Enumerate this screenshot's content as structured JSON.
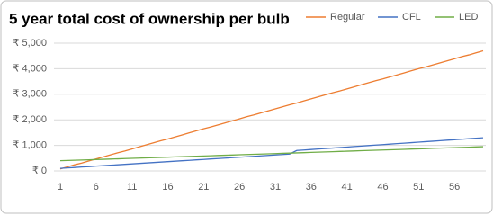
{
  "chart_data": {
    "type": "line",
    "title": "5 year total cost of ownership per bulb",
    "x": [
      1,
      2,
      3,
      4,
      5,
      6,
      7,
      8,
      9,
      10,
      11,
      12,
      13,
      14,
      15,
      16,
      17,
      18,
      19,
      20,
      21,
      22,
      23,
      24,
      25,
      26,
      27,
      28,
      29,
      30,
      31,
      32,
      33,
      34,
      35,
      36,
      37,
      38,
      39,
      40,
      41,
      42,
      43,
      44,
      45,
      46,
      47,
      48,
      49,
      50,
      51,
      52,
      53,
      54,
      55,
      56,
      57,
      58,
      59,
      60
    ],
    "xlim": [
      1,
      60
    ],
    "xticks": [
      1,
      6,
      11,
      16,
      21,
      26,
      31,
      36,
      41,
      46,
      51,
      56
    ],
    "ylim": [
      0,
      5000
    ],
    "yticks": [
      {
        "value": 0,
        "label": "₹ 0"
      },
      {
        "value": 1000,
        "label": "₹ 1,000"
      },
      {
        "value": 2000,
        "label": "₹ 2,000"
      },
      {
        "value": 3000,
        "label": "₹ 3,000"
      },
      {
        "value": 4000,
        "label": "₹ 4,000"
      },
      {
        "value": 5000,
        "label": "₹ 5,000"
      }
    ],
    "grid": true,
    "legend": "top-right",
    "series": [
      {
        "name": "Regular",
        "color": "#ed7d31",
        "values": [
          80,
          160,
          240,
          310,
          390,
          470,
          550,
          630,
          710,
          780,
          860,
          940,
          1020,
          1100,
          1180,
          1250,
          1330,
          1410,
          1490,
          1570,
          1650,
          1720,
          1800,
          1880,
          1960,
          2040,
          2120,
          2190,
          2270,
          2350,
          2430,
          2510,
          2590,
          2660,
          2740,
          2820,
          2900,
          2980,
          3060,
          3130,
          3210,
          3290,
          3370,
          3450,
          3530,
          3600,
          3680,
          3760,
          3840,
          3920,
          4000,
          4070,
          4150,
          4230,
          4310,
          4390,
          4470,
          4540,
          4620,
          4700
        ]
      },
      {
        "name": "CFL",
        "color": "#4472c4",
        "values": [
          100,
          118,
          135,
          153,
          170,
          188,
          205,
          223,
          240,
          258,
          275,
          293,
          310,
          328,
          345,
          363,
          380,
          398,
          415,
          433,
          450,
          468,
          485,
          503,
          520,
          538,
          555,
          573,
          590,
          608,
          625,
          643,
          660,
          800,
          819,
          838,
          858,
          877,
          896,
          915,
          934,
          954,
          973,
          992,
          1011,
          1030,
          1050,
          1069,
          1088,
          1107,
          1126,
          1146,
          1165,
          1184,
          1203,
          1222,
          1242,
          1261,
          1280,
          1299
        ]
      },
      {
        "name": "LED",
        "color": "#70ad47",
        "values": [
          400,
          409,
          419,
          428,
          437,
          447,
          456,
          465,
          474,
          484,
          493,
          502,
          512,
          521,
          530,
          540,
          549,
          558,
          567,
          577,
          586,
          595,
          605,
          614,
          623,
          633,
          642,
          651,
          660,
          670,
          679,
          688,
          698,
          707,
          716,
          726,
          735,
          744,
          753,
          763,
          772,
          781,
          791,
          800,
          809,
          819,
          828,
          837,
          846,
          856,
          865,
          874,
          884,
          893,
          902,
          912,
          921,
          930,
          939,
          949
        ]
      }
    ]
  }
}
